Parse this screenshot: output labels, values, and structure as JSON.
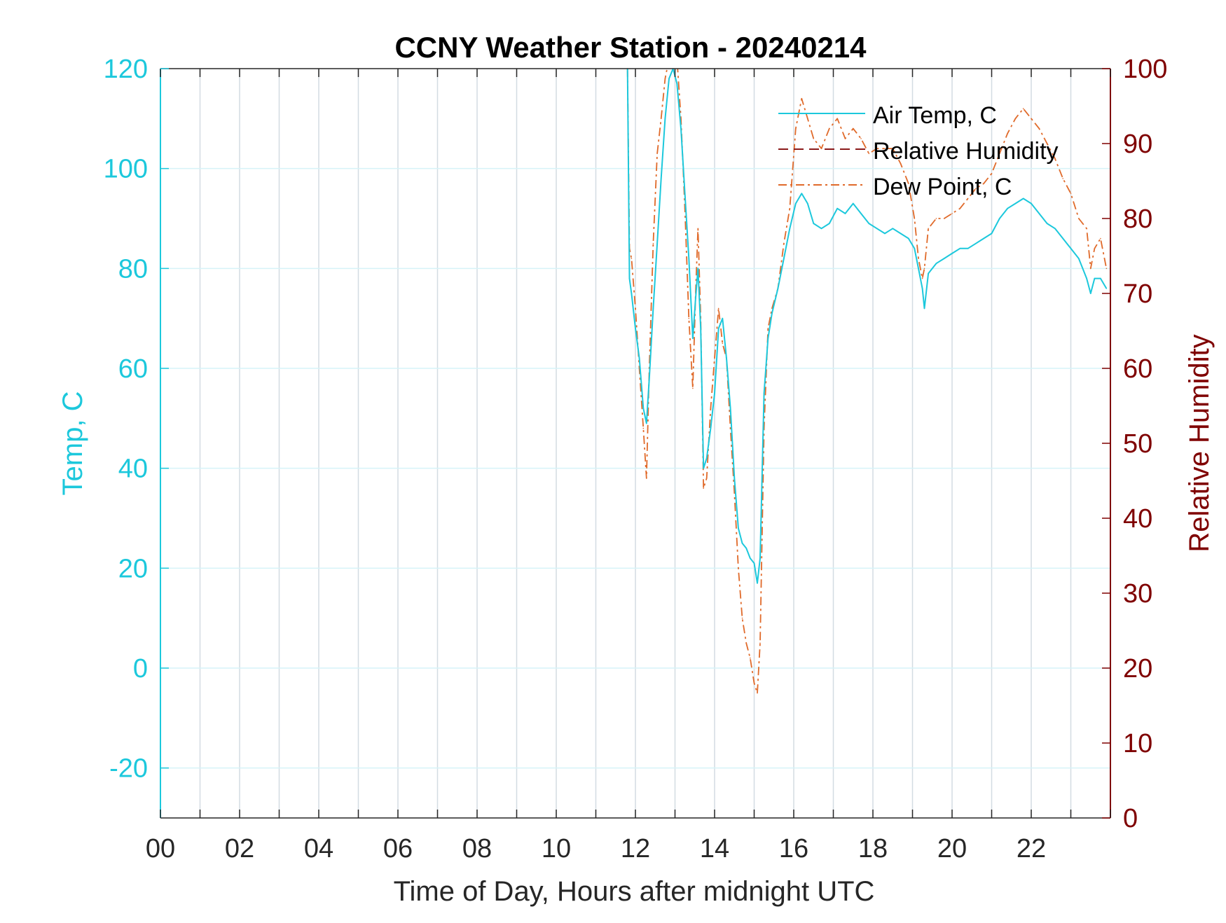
{
  "chart_data": {
    "type": "line",
    "title": "CCNY Weather Station - 20240214",
    "xlabel": "Time of Day, Hours after midnight UTC",
    "ylabel_left": "Temp, C",
    "ylabel_right": "Relative Humidity",
    "xlim": [
      0,
      24
    ],
    "ylim_left": [
      -30,
      120
    ],
    "ylim_right": [
      0,
      100
    ],
    "x_ticks": [
      0,
      2,
      4,
      6,
      8,
      10,
      12,
      14,
      16,
      18,
      20,
      22
    ],
    "x_tick_labels": [
      "00",
      "02",
      "04",
      "06",
      "08",
      "10",
      "12",
      "14",
      "16",
      "18",
      "20",
      "22"
    ],
    "y_left_ticks": [
      -20,
      0,
      20,
      40,
      60,
      80,
      100,
      120
    ],
    "y_left_tick_labels": [
      "-20",
      "0",
      "20",
      "40",
      "60",
      "80",
      "100",
      "120"
    ],
    "y_right_ticks": [
      0,
      10,
      20,
      30,
      40,
      50,
      60,
      70,
      80,
      90,
      100
    ],
    "y_right_tick_labels": [
      "0",
      "10",
      "20",
      "30",
      "40",
      "50",
      "60",
      "70",
      "80",
      "90",
      "100"
    ],
    "grid": true,
    "legend_position": "top-right",
    "colors": {
      "left_axis": "#1cc8dc",
      "right_axis": "#7f0000",
      "air_temp": "#1cc8dc",
      "relative_humidity": "#8b1a1a",
      "dew_point": "#e06a2a",
      "grid": "#d3dce2",
      "hgrid": "#d6f3f8"
    },
    "series": [
      {
        "name": "Air Temp, C",
        "axis": "left",
        "style": "solid",
        "x": [
          11.8,
          11.85,
          11.9,
          12.0,
          12.1,
          12.2,
          12.28,
          12.35,
          12.45,
          12.55,
          12.65,
          12.75,
          12.85,
          12.95,
          13.05,
          13.15,
          13.25,
          13.35,
          13.45,
          13.52,
          13.58,
          13.65,
          13.72,
          13.8,
          13.9,
          14.0,
          14.1,
          14.2,
          14.3,
          14.4,
          14.5,
          14.6,
          14.7,
          14.8,
          14.9,
          15.0,
          15.08,
          15.15,
          15.25,
          15.35,
          15.45,
          15.6,
          15.75,
          15.9,
          16.05,
          16.2,
          16.35,
          16.5,
          16.7,
          16.9,
          17.1,
          17.3,
          17.5,
          17.7,
          17.9,
          18.1,
          18.3,
          18.5,
          18.7,
          18.9,
          19.05,
          19.15,
          19.25,
          19.3,
          19.4,
          19.6,
          19.8,
          20.0,
          20.2,
          20.4,
          20.6,
          20.8,
          21.0,
          21.2,
          21.4,
          21.6,
          21.8,
          22.0,
          22.2,
          22.4,
          22.6,
          22.8,
          23.0,
          23.2,
          23.4,
          23.5,
          23.6,
          23.75,
          23.9
        ],
        "y": [
          120,
          78,
          75,
          68,
          62,
          52,
          49,
          58,
          72,
          85,
          98,
          110,
          118,
          120,
          117,
          108,
          95,
          82,
          66,
          74,
          80,
          68,
          40,
          42,
          48,
          55,
          68,
          70,
          62,
          52,
          38,
          28,
          25,
          24,
          22,
          21,
          17,
          22,
          55,
          66,
          71,
          76,
          82,
          88,
          93,
          95,
          93,
          89,
          88,
          89,
          92,
          91,
          93,
          91,
          89,
          88,
          87,
          88,
          87,
          86,
          84,
          80,
          76,
          72,
          79,
          81,
          82,
          83,
          84,
          84,
          85,
          86,
          87,
          90,
          92,
          93,
          94,
          93,
          91,
          89,
          88,
          86,
          84,
          82,
          78,
          75,
          78,
          78,
          76
        ]
      },
      {
        "name": "Relative Humidity",
        "axis": "right",
        "style": "dashed",
        "x": [],
        "y": []
      },
      {
        "name": "Dew Point, C",
        "axis": "left",
        "style": "dashdot",
        "x": [
          11.8,
          11.85,
          11.9,
          12.0,
          12.1,
          12.2,
          12.28,
          12.35,
          12.45,
          12.55,
          12.65,
          12.75,
          12.85,
          12.95,
          13.05,
          13.15,
          13.25,
          13.35,
          13.45,
          13.52,
          13.58,
          13.65,
          13.72,
          13.8,
          13.9,
          14.0,
          14.1,
          14.2,
          14.3,
          14.4,
          14.5,
          14.6,
          14.7,
          14.8,
          14.9,
          15.0,
          15.08,
          15.15,
          15.25,
          15.35,
          15.45,
          15.6,
          15.75,
          15.9,
          16.05,
          16.2,
          16.35,
          16.5,
          16.7,
          16.9,
          17.1,
          17.3,
          17.5,
          17.7,
          17.9,
          18.1,
          18.3,
          18.5,
          18.7,
          18.9,
          19.05,
          19.15,
          19.25,
          19.3,
          19.4,
          19.6,
          19.8,
          20.0,
          20.2,
          20.4,
          20.6,
          20.8,
          21.0,
          21.2,
          21.4,
          21.6,
          21.8,
          22.0,
          22.2,
          22.4,
          22.6,
          22.8,
          23.0,
          23.2,
          23.4,
          23.5,
          23.6,
          23.75,
          23.9
        ],
        "y": [
          120,
          84,
          82,
          72,
          60,
          48,
          38,
          60,
          85,
          103,
          110,
          118,
          122,
          120,
          122,
          110,
          92,
          70,
          56,
          75,
          88,
          70,
          36,
          38,
          52,
          62,
          72,
          65,
          62,
          48,
          35,
          20,
          10,
          5,
          2,
          -3,
          -5,
          5,
          48,
          68,
          72,
          76,
          85,
          92,
          108,
          114,
          110,
          106,
          104,
          108,
          110,
          106,
          108,
          106,
          103,
          104,
          104,
          104,
          101,
          97,
          90,
          82,
          78,
          80,
          88,
          90,
          90,
          91,
          92,
          94,
          96,
          97,
          99,
          103,
          107,
          110,
          112,
          110,
          108,
          105,
          102,
          98,
          95,
          90,
          88,
          80,
          84,
          86,
          80
        ]
      }
    ]
  }
}
